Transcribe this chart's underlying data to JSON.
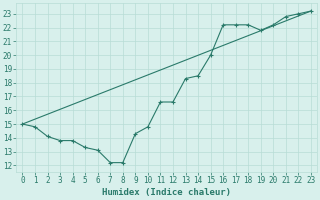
{
  "xlabel": "Humidex (Indice chaleur)",
  "line1_x": [
    0,
    1,
    2,
    3,
    4,
    5,
    6,
    7,
    8,
    9,
    10,
    11,
    12,
    13,
    14,
    15,
    16,
    17,
    18,
    19,
    20,
    21,
    22,
    23
  ],
  "line1_y": [
    15,
    14.8,
    14.1,
    13.8,
    13.8,
    13.3,
    13.1,
    12.2,
    12.2,
    14.3,
    14.8,
    16.6,
    16.6,
    18.3,
    18.5,
    20.0,
    22.2,
    22.2,
    22.2,
    21.8,
    22.2,
    22.8,
    23.0,
    23.2
  ],
  "line2_x": [
    0,
    23
  ],
  "line2_y": [
    15,
    23.2
  ],
  "color": "#2a7a6a",
  "bg_color": "#d8f0ec",
  "grid_color": "#b8ddd6",
  "xlim": [
    -0.5,
    23.5
  ],
  "ylim": [
    11.5,
    23.8
  ],
  "yticks": [
    12,
    13,
    14,
    15,
    16,
    17,
    18,
    19,
    20,
    21,
    22,
    23
  ],
  "xticks": [
    0,
    1,
    2,
    3,
    4,
    5,
    6,
    7,
    8,
    9,
    10,
    11,
    12,
    13,
    14,
    15,
    16,
    17,
    18,
    19,
    20,
    21,
    22,
    23
  ],
  "tick_fontsize": 5.5,
  "xlabel_fontsize": 6.5
}
